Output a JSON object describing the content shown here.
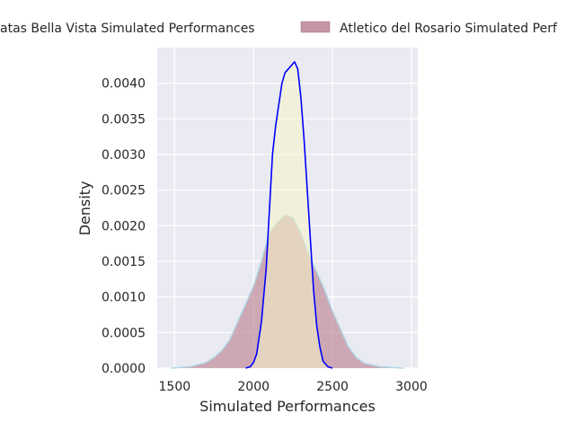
{
  "chart_data": {
    "type": "area",
    "xlabel": "Simulated Performances",
    "ylabel": "Density",
    "xlim": [
      1390,
      3040
    ],
    "ylim": [
      0,
      0.0045
    ],
    "xticks": [
      1500,
      2000,
      2500,
      3000
    ],
    "yticks": [
      0.0,
      0.0005,
      0.001,
      0.0015,
      0.002,
      0.0025,
      0.003,
      0.0035,
      0.004
    ],
    "ytick_labels": [
      "0.0000",
      "0.0005",
      "0.0010",
      "0.0015",
      "0.0020",
      "0.0025",
      "0.0030",
      "0.0035",
      "0.0040"
    ],
    "grid": true,
    "legend_position": "top",
    "series": [
      {
        "name": "Plaza Plantas Bella Vista Simulated Performances",
        "legend_text": "atas Bella Vista Simulated Performances",
        "line_color": "#0000ff",
        "fill_color": "#f5f5c8",
        "points": [
          [
            1950,
            0.0
          ],
          [
            1980,
            2e-05
          ],
          [
            2000,
            8e-05
          ],
          [
            2020,
            0.0002
          ],
          [
            2050,
            0.00065
          ],
          [
            2080,
            0.0014
          ],
          [
            2100,
            0.0022
          ],
          [
            2120,
            0.003
          ],
          [
            2140,
            0.0034
          ],
          [
            2160,
            0.0037
          ],
          [
            2180,
            0.004
          ],
          [
            2200,
            0.00415
          ],
          [
            2220,
            0.0042
          ],
          [
            2240,
            0.00425
          ],
          [
            2260,
            0.0043
          ],
          [
            2280,
            0.0042
          ],
          [
            2300,
            0.0038
          ],
          [
            2320,
            0.0032
          ],
          [
            2340,
            0.0025
          ],
          [
            2360,
            0.0018
          ],
          [
            2380,
            0.0011
          ],
          [
            2400,
            0.0006
          ],
          [
            2420,
            0.0003
          ],
          [
            2440,
            0.0001
          ],
          [
            2470,
            2e-05
          ],
          [
            2500,
            0.0
          ]
        ]
      },
      {
        "name": "Atletico del Rosario Simulated Performances",
        "legend_text": "Atletico del Rosario Simulated Perf",
        "line_color": "#add8e6",
        "fill_color": "#c08b9a",
        "points": [
          [
            1480,
            0.0
          ],
          [
            1600,
            2e-05
          ],
          [
            1700,
            8e-05
          ],
          [
            1750,
            0.00015
          ],
          [
            1800,
            0.00025
          ],
          [
            1850,
            0.0004
          ],
          [
            1900,
            0.00065
          ],
          [
            1950,
            0.0009
          ],
          [
            2000,
            0.00115
          ],
          [
            2050,
            0.0015
          ],
          [
            2100,
            0.0019
          ],
          [
            2150,
            0.00205
          ],
          [
            2200,
            0.00215
          ],
          [
            2250,
            0.00212
          ],
          [
            2300,
            0.0019
          ],
          [
            2350,
            0.0016
          ],
          [
            2400,
            0.00135
          ],
          [
            2450,
            0.0011
          ],
          [
            2500,
            0.0008
          ],
          [
            2550,
            0.00055
          ],
          [
            2600,
            0.0003
          ],
          [
            2650,
            0.00015
          ],
          [
            2700,
            7e-05
          ],
          [
            2800,
            2e-05
          ],
          [
            2950,
            0.0
          ]
        ]
      }
    ]
  }
}
